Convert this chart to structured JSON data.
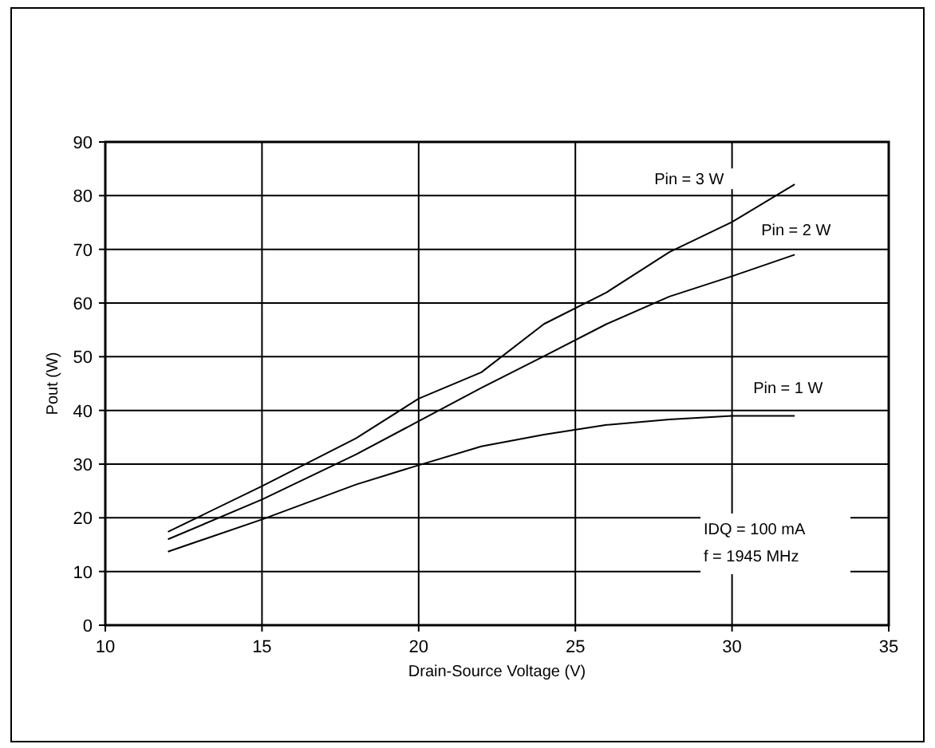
{
  "chart_data": {
    "type": "line",
    "xlabel": "Drain-Source Voltage (V)",
    "ylabel": "Pout (W)",
    "x": [
      12,
      15,
      18,
      20,
      22,
      24,
      26,
      28,
      30,
      32
    ],
    "series": [
      {
        "name": "Pin = 3 W",
        "color": "#000000",
        "values": [
          17.4,
          25.9,
          34.8,
          42.2,
          47.1,
          56.1,
          62,
          69.5,
          75.1,
          82.1
        ]
      },
      {
        "name": "Pin = 2 W",
        "color": "#000000",
        "values": [
          16,
          23.4,
          31.8,
          38,
          44.2,
          50.1,
          56.1,
          61.2,
          65,
          69
        ]
      },
      {
        "name": "Pin = 1 W",
        "color": "#000000",
        "values": [
          13.7,
          19.7,
          26.2,
          29.8,
          33.3,
          35.5,
          37.3,
          38.3,
          39,
          39
        ]
      }
    ],
    "xlim": [
      10,
      35
    ],
    "xticks": [
      10,
      15,
      20,
      25,
      30,
      35
    ],
    "ylim": [
      0,
      90
    ],
    "yticks": [
      0,
      10,
      20,
      30,
      40,
      50,
      60,
      70,
      80,
      90
    ],
    "grid": true,
    "marker": "none",
    "line_style": "solid",
    "annotations": [
      "IDQ = 100 mA",
      "f = 1945 MHz"
    ]
  }
}
